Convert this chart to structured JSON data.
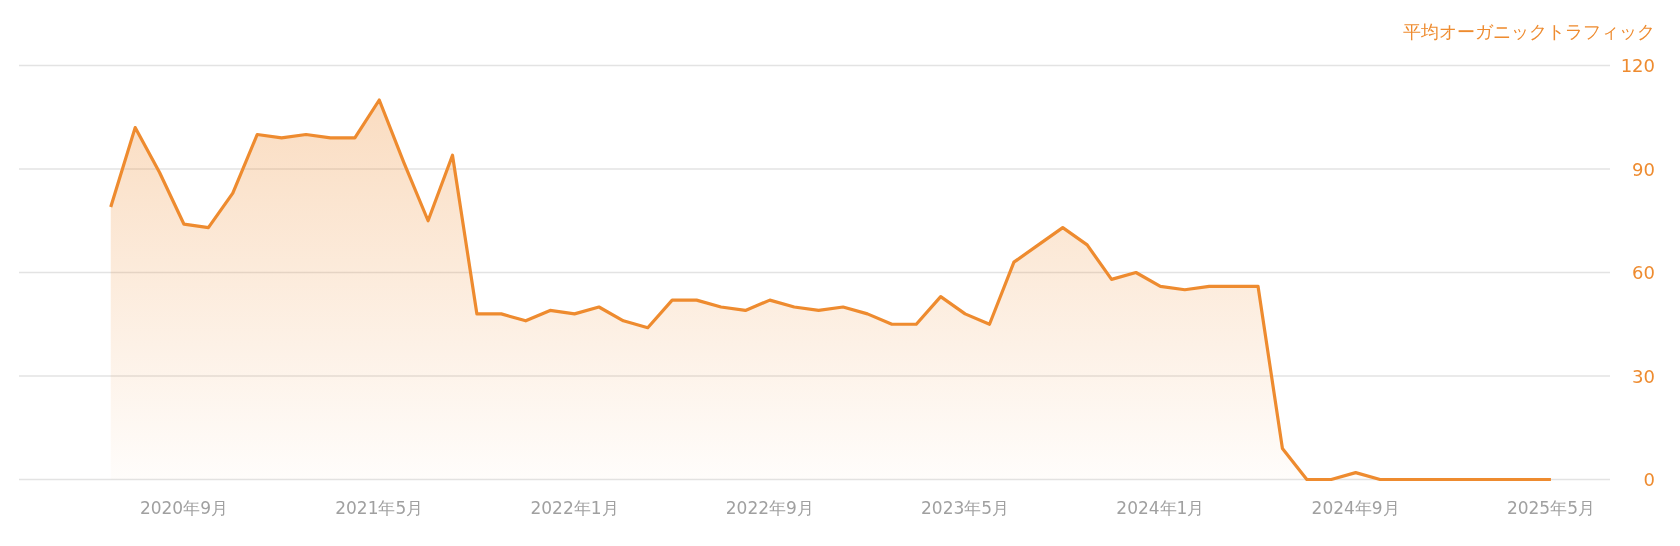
{
  "chart_data": {
    "type": "area",
    "ylabel": "平均オーガニックトラフィック",
    "color": "#ee8b2f",
    "x": [
      "2020-06",
      "2020-07",
      "2020-08",
      "2020-09",
      "2020-10",
      "2020-11",
      "2020-12",
      "2021-01",
      "2021-02",
      "2021-03",
      "2021-04",
      "2021-05",
      "2021-06",
      "2021-07",
      "2021-08",
      "2021-09",
      "2021-10",
      "2021-11",
      "2021-12",
      "2022-01",
      "2022-02",
      "2022-03",
      "2022-04",
      "2022-05",
      "2022-06",
      "2022-07",
      "2022-08",
      "2022-09",
      "2022-10",
      "2022-11",
      "2022-12",
      "2023-01",
      "2023-02",
      "2023-03",
      "2023-04",
      "2023-05",
      "2023-06",
      "2023-07",
      "2023-08",
      "2023-09",
      "2023-10",
      "2023-11",
      "2023-12",
      "2024-01",
      "2024-02",
      "2024-03",
      "2024-04",
      "2024-05",
      "2024-06",
      "2024-07",
      "2024-08",
      "2024-09",
      "2024-10",
      "2024-11",
      "2024-12",
      "2025-01",
      "2025-02",
      "2025-03",
      "2025-04",
      "2025-05"
    ],
    "values": [
      79,
      102,
      89,
      74,
      73,
      83,
      100,
      99,
      100,
      99,
      99,
      110,
      92,
      75,
      94,
      48,
      48,
      46,
      49,
      48,
      50,
      46,
      44,
      52,
      52,
      50,
      49,
      52,
      50,
      49,
      50,
      48,
      45,
      45,
      53,
      48,
      45,
      63,
      68,
      73,
      68,
      58,
      60,
      56,
      55,
      56,
      56,
      56,
      9,
      0,
      0,
      2,
      0,
      0,
      0,
      0,
      0,
      0,
      0,
      0
    ],
    "xlim": [
      "2020-02-08",
      "2025-07-14"
    ],
    "xticks": [
      {
        "value": "2020-09",
        "label": "2020年9月"
      },
      {
        "value": "2021-05",
        "label": "2021年5月"
      },
      {
        "value": "2022-01",
        "label": "2022年1月"
      },
      {
        "value": "2022-09",
        "label": "2022年9月"
      },
      {
        "value": "2023-05",
        "label": "2023年5月"
      },
      {
        "value": "2024-01",
        "label": "2024年1月"
      },
      {
        "value": "2024-09",
        "label": "2024年9月"
      },
      {
        "value": "2025-05",
        "label": "2025年5月"
      }
    ],
    "ylim": [
      0,
      120
    ],
    "yticks": [
      0,
      30,
      60,
      90,
      120
    ],
    "grid": "y"
  }
}
